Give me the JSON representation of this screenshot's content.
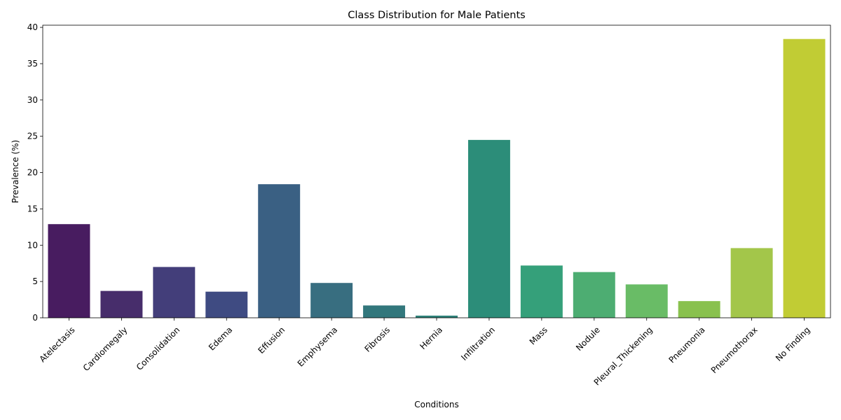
{
  "chart_data": {
    "type": "bar",
    "title": "Class Distribution for Male Patients",
    "xlabel": "Conditions",
    "ylabel": "Prevalence (%)",
    "ylim": [
      0,
      40.3
    ],
    "yticks": [
      0,
      5,
      10,
      15,
      20,
      25,
      30,
      35,
      40
    ],
    "grid": false,
    "legend": "none",
    "categories": [
      "Atelectasis",
      "Cardiomegaly",
      "Consolidation",
      "Edema",
      "Effusion",
      "Emphysema",
      "Fibrosis",
      "Hernia",
      "Infiltration",
      "Mass",
      "Nodule",
      "Pleural_Thickening",
      "Pneumonia",
      "Pneumothorax",
      "No Finding"
    ],
    "values": [
      12.9,
      3.7,
      7.0,
      3.6,
      18.4,
      4.8,
      1.7,
      0.3,
      24.5,
      7.2,
      6.3,
      4.6,
      2.3,
      9.6,
      38.4
    ],
    "colors": [
      "#481c60",
      "#472d6b",
      "#433e7a",
      "#3f4b82",
      "#3a6083",
      "#386e80",
      "#32777c",
      "#2e8279",
      "#2c8d79",
      "#35a07a",
      "#4dad72",
      "#69bc66",
      "#89c14e",
      "#a3c64a",
      "#c1cc34"
    ]
  }
}
